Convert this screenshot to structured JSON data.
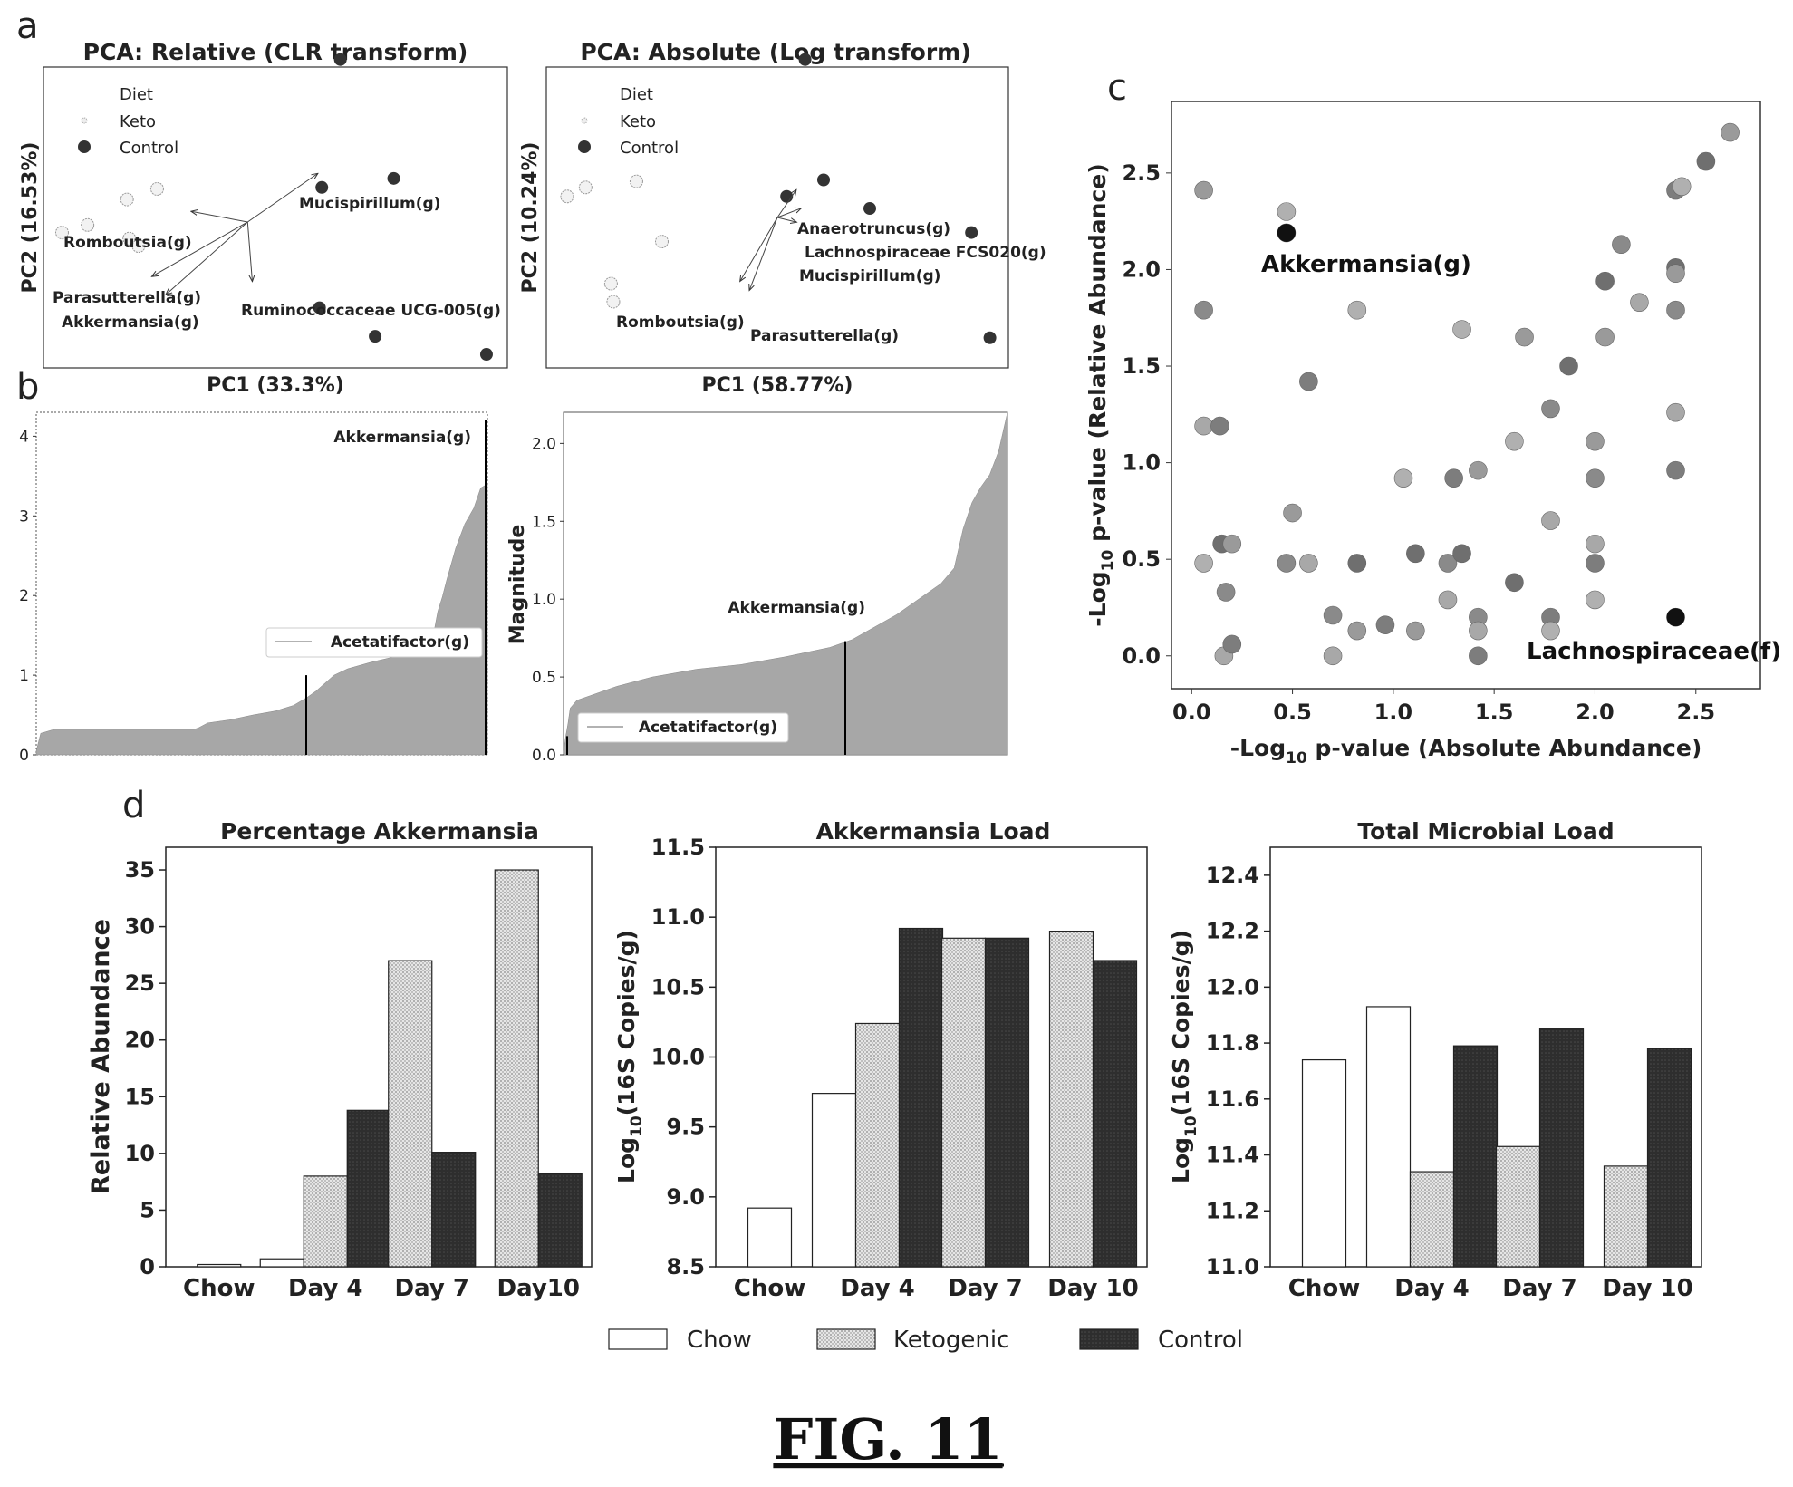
{
  "figure_caption": "FIG. 11",
  "panels": {
    "a": "a",
    "b": "b",
    "c": "c",
    "d": "d"
  },
  "colors": {
    "keto": "#d4d4d4",
    "control": "#333333",
    "chow": "#ffffff",
    "scatter_fill": "#9a9a9a",
    "bar_fill": "#a7a7a7"
  },
  "chart_data": [
    {
      "id": "a1",
      "type": "scatter",
      "title": "PCA: Relative (CLR transform)",
      "xlabel": "PC1 (33.3%)",
      "ylabel": "PC2 (16.53%)",
      "legend": {
        "title": "Diet",
        "items": [
          "Keto",
          "Control"
        ],
        "placement": "top-left"
      },
      "xlim": [
        -1,
        1
      ],
      "ylim": [
        -1,
        1
      ],
      "series": [
        {
          "name": "Keto",
          "points": [
            [
              -0.92,
              -0.1
            ],
            [
              -0.81,
              -0.05
            ],
            [
              -0.64,
              0.12
            ],
            [
              -0.63,
              -0.14
            ],
            [
              -0.59,
              -0.19
            ],
            [
              -0.51,
              0.19
            ]
          ]
        },
        {
          "name": "Control",
          "points": [
            [
              0.28,
              1.05
            ],
            [
              0.2,
              0.2
            ],
            [
              0.51,
              0.26
            ],
            [
              0.19,
              -0.6
            ],
            [
              0.43,
              -0.79
            ],
            [
              0.91,
              -0.91
            ]
          ]
        }
      ],
      "loadings": [
        {
          "label": "Mucispirillum(g)",
          "end": [
            0.18,
            0.29
          ]
        },
        {
          "label": "Romboutsia(g)",
          "end": [
            -0.36,
            0.04
          ]
        },
        {
          "label": "Parasutterella(g)",
          "end": [
            -0.53,
            -0.39
          ]
        },
        {
          "label": "Akkermansia(g)",
          "end": [
            -0.47,
            -0.51
          ]
        },
        {
          "label": "Ruminococcaceae UCG-005(g)",
          "end": [
            -0.1,
            -0.42
          ]
        }
      ]
    },
    {
      "id": "a2",
      "type": "scatter",
      "title": "PCA: Absolute (Log transform)",
      "xlabel": "PC1 (58.77%)",
      "ylabel": "PC2 (10.24%)",
      "legend": {
        "title": "Diet",
        "items": [
          "Keto",
          "Control"
        ],
        "placement": "top-left"
      },
      "xlim": [
        -1,
        1
      ],
      "ylim": [
        -1,
        1
      ],
      "series": [
        {
          "name": "Keto",
          "points": [
            [
              -0.91,
              0.14
            ],
            [
              -0.83,
              0.2
            ],
            [
              -0.61,
              0.24
            ],
            [
              -0.5,
              -0.16
            ],
            [
              -0.72,
              -0.44
            ],
            [
              -0.71,
              -0.56
            ]
          ]
        },
        {
          "name": "Control",
          "points": [
            [
              0.12,
              1.05
            ],
            [
              0.04,
              0.14
            ],
            [
              0.2,
              0.25
            ],
            [
              0.4,
              0.06
            ],
            [
              0.84,
              -0.1
            ],
            [
              0.92,
              -0.8
            ]
          ]
        }
      ],
      "loadings": [
        {
          "label": "Anaerotruncus(g)",
          "end": [
            0.08,
            0.18
          ]
        },
        {
          "label": "Lachnospiraceae FCS020(g)",
          "end": [
            0.1,
            0.06
          ]
        },
        {
          "label": "Mucispirillum(g)",
          "end": [
            0.08,
            -0.03
          ]
        },
        {
          "label": "Romboutsia(g)",
          "end": [
            -0.16,
            -0.42
          ]
        },
        {
          "label": "Parasutterella(g)",
          "end": [
            -0.12,
            -0.48
          ]
        }
      ]
    },
    {
      "id": "b1",
      "type": "bar",
      "ylabel": "",
      "ylim": [
        0,
        4.3
      ],
      "yticks": [
        "0",
        "1",
        "2",
        "3",
        "4"
      ],
      "annotations": [
        {
          "label": "Akkermansia(g)",
          "value": 4.2
        },
        {
          "label": "Acetatifactor(g)",
          "value": 1.0
        }
      ]
    },
    {
      "id": "b2",
      "type": "bar",
      "ylabel": "Magnitude",
      "ylim": [
        0,
        2.2
      ],
      "yticks": [
        "0.0",
        "0.5",
        "1.0",
        "1.5",
        "2.0"
      ],
      "annotations": [
        {
          "label": "Akkermansia(g)",
          "value": 0.73
        },
        {
          "label": "Acetatifactor(g)",
          "value": 0.12
        }
      ]
    },
    {
      "id": "c",
      "type": "scatter",
      "xlabel": "-Log",
      "xlabel_sub": "10",
      "xlabel_rest": " p-value (Absolute Abundance)",
      "ylabel": "-Log",
      "ylabel_sub": "10",
      "ylabel_rest": " p-value (Relative Abundance)",
      "xlim": [
        -0.1,
        2.82
      ],
      "ylim": [
        -0.17,
        2.87
      ],
      "xticks": [
        "0.0",
        "0.5",
        "1.0",
        "1.5",
        "2.0",
        "2.5"
      ],
      "yticks": [
        "0.0",
        "0.5",
        "1.0",
        "1.5",
        "2.0",
        "2.5"
      ],
      "annotations": [
        {
          "label": "Akkermansia(g)",
          "x": 0.47,
          "y": 2.19
        },
        {
          "label": "Lachnospiraceae(f)",
          "x": 2.4,
          "y": 0.2
        }
      ],
      "points": [
        [
          0.06,
          2.41
        ],
        [
          0.06,
          1.79
        ],
        [
          0.06,
          1.19
        ],
        [
          0.14,
          1.19
        ],
        [
          0.06,
          0.48
        ],
        [
          0.15,
          0.58
        ],
        [
          0.2,
          0.58
        ],
        [
          0.17,
          0.33
        ],
        [
          0.16,
          0.0
        ],
        [
          0.2,
          0.06
        ],
        [
          0.47,
          2.3
        ],
        [
          0.47,
          2.19
        ],
        [
          0.5,
          0.74
        ],
        [
          0.47,
          0.48
        ],
        [
          0.58,
          0.48
        ],
        [
          0.58,
          1.42
        ],
        [
          0.82,
          1.79
        ],
        [
          0.82,
          0.48
        ],
        [
          0.82,
          0.13
        ],
        [
          0.7,
          0.21
        ],
        [
          0.7,
          0.0
        ],
        [
          0.96,
          0.16
        ],
        [
          1.05,
          0.92
        ],
        [
          1.11,
          0.53
        ],
        [
          1.11,
          0.13
        ],
        [
          1.27,
          0.48
        ],
        [
          1.27,
          0.29
        ],
        [
          1.3,
          0.92
        ],
        [
          1.34,
          1.69
        ],
        [
          1.34,
          0.53
        ],
        [
          1.42,
          0.96
        ],
        [
          1.42,
          0.2
        ],
        [
          1.42,
          0.13
        ],
        [
          1.42,
          0.0
        ],
        [
          1.6,
          1.11
        ],
        [
          1.6,
          0.38
        ],
        [
          1.65,
          1.65
        ],
        [
          1.78,
          1.28
        ],
        [
          1.78,
          0.7
        ],
        [
          1.78,
          0.2
        ],
        [
          1.78,
          0.13
        ],
        [
          1.87,
          1.5
        ],
        [
          2.0,
          1.11
        ],
        [
          2.0,
          0.92
        ],
        [
          2.0,
          0.58
        ],
        [
          2.0,
          0.48
        ],
        [
          2.0,
          0.29
        ],
        [
          2.05,
          1.94
        ],
        [
          2.05,
          1.65
        ],
        [
          2.13,
          2.13
        ],
        [
          2.22,
          1.83
        ],
        [
          2.4,
          2.41
        ],
        [
          2.43,
          2.43
        ],
        [
          2.4,
          2.01
        ],
        [
          2.4,
          1.98
        ],
        [
          2.4,
          1.79
        ],
        [
          2.4,
          1.26
        ],
        [
          2.4,
          0.96
        ],
        [
          2.4,
          0.2
        ],
        [
          2.55,
          2.56
        ],
        [
          2.67,
          2.71
        ]
      ]
    },
    {
      "id": "d1",
      "type": "bar",
      "title": "Percentage Akkermansia",
      "ylabel": "Relative Abundance",
      "ylim": [
        0,
        37
      ],
      "yticks": [
        0,
        5,
        10,
        15,
        20,
        25,
        30,
        35
      ],
      "categories": [
        "Chow",
        "Day 4",
        "Day 7",
        "Day10"
      ],
      "series": [
        {
          "name": "Chow",
          "values": [
            0.2,
            0.7,
            null,
            null
          ]
        },
        {
          "name": "Ketogenic",
          "values": [
            null,
            8.0,
            27.0,
            35.0
          ]
        },
        {
          "name": "Control",
          "values": [
            null,
            13.8,
            10.1,
            8.2
          ]
        }
      ]
    },
    {
      "id": "d2",
      "type": "bar",
      "title": "Akkermansia Load",
      "ylabel": "Log",
      "ylabel_sub": "10",
      "ylabel_rest": "(16S Copies/g)",
      "ylim": [
        8.5,
        11.5
      ],
      "yticks": [
        "8.5",
        "9.0",
        "9.5",
        "10.0",
        "10.5",
        "11.0",
        "11.5"
      ],
      "categories": [
        "Chow",
        "Day 4",
        "Day 7",
        "Day 10"
      ],
      "series": [
        {
          "name": "Chow",
          "values": [
            8.92,
            9.74,
            null,
            null
          ]
        },
        {
          "name": "Ketogenic",
          "values": [
            null,
            10.24,
            10.85,
            10.9
          ]
        },
        {
          "name": "Control",
          "values": [
            null,
            10.92,
            10.85,
            10.69
          ]
        }
      ]
    },
    {
      "id": "d3",
      "type": "bar",
      "title": "Total Microbial Load",
      "ylabel": "Log",
      "ylabel_sub": "10",
      "ylabel_rest": "(16S Copies/g)",
      "ylim": [
        11.0,
        12.5
      ],
      "yticks": [
        "11.0",
        "11.2",
        "11.4",
        "11.6",
        "11.8",
        "12.0",
        "12.2",
        "12.4"
      ],
      "categories": [
        "Chow",
        "Day 4",
        "Day 7",
        "Day 10"
      ],
      "series": [
        {
          "name": "Chow",
          "values": [
            11.74,
            11.93,
            null,
            null
          ]
        },
        {
          "name": "Ketogenic",
          "values": [
            null,
            11.34,
            11.43,
            11.36
          ]
        },
        {
          "name": "Control",
          "values": [
            null,
            11.79,
            11.85,
            11.78
          ]
        }
      ]
    }
  ],
  "legend_d": {
    "items": [
      "Chow",
      "Ketogenic",
      "Control"
    ],
    "placement": "bottom-center"
  }
}
